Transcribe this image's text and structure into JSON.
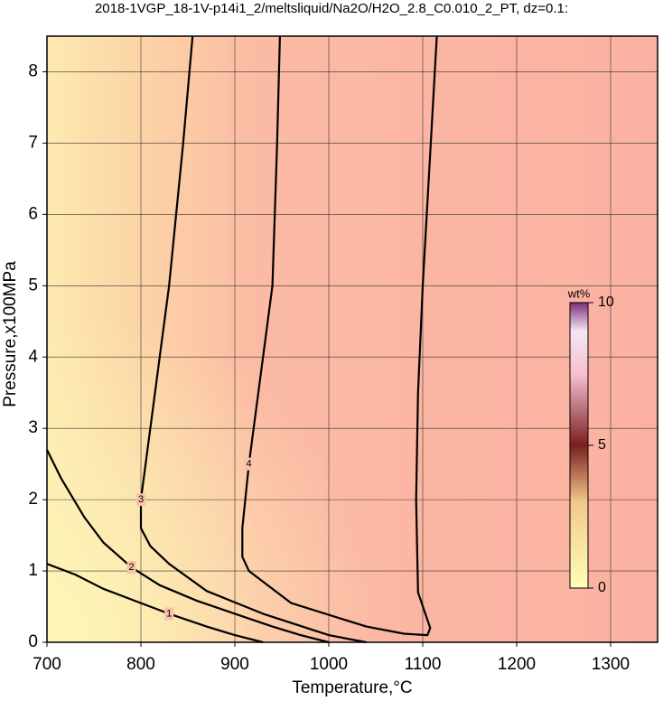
{
  "chart_data": {
    "type": "contour",
    "title": "2018-1VGP_18-1V-p14i1_2/meltsliquid/Na2O/H2O_2.8_C0.010_2_PT, dz=0.1:",
    "x_label": "Temperature,°C",
    "y_label": "Pressure,x100MPa",
    "xlim": [
      700,
      1350
    ],
    "ylim": [
      0,
      8.5
    ],
    "xticks": [
      700,
      800,
      900,
      1000,
      1100,
      1200,
      1300
    ],
    "yticks": [
      0,
      1,
      2,
      3,
      4,
      5,
      6,
      7,
      8
    ],
    "grid": true,
    "contours": [
      {
        "level": 1,
        "x": [
          700,
          730,
          760,
          800,
          830,
          870,
          900,
          930
        ],
        "y": [
          1.1,
          0.95,
          0.75,
          0.55,
          0.4,
          0.22,
          0.1,
          0
        ]
      },
      {
        "level": 2,
        "x": [
          700,
          715,
          740,
          760,
          790,
          820,
          860,
          900,
          940,
          970,
          1000
        ],
        "y": [
          2.7,
          2.3,
          1.75,
          1.4,
          1.05,
          0.8,
          0.58,
          0.4,
          0.22,
          0.1,
          0
        ]
      },
      {
        "level": 3,
        "x": [
          855,
          845,
          830,
          810,
          800,
          800,
          810,
          830,
          870,
          930,
          1000,
          1040
        ],
        "y": [
          8.5,
          7,
          5,
          3,
          2,
          1.6,
          1.35,
          1.1,
          0.72,
          0.4,
          0.1,
          0
        ]
      },
      {
        "level": 4,
        "x": [
          948,
          945,
          940,
          915,
          908,
          908,
          915,
          960,
          1040,
          1080,
          1105,
          1108,
          1095,
          1093,
          1095,
          1100,
          1115
        ],
        "y": [
          8.5,
          7,
          5,
          2.5,
          1.6,
          1.2,
          1.0,
          0.55,
          0.22,
          0.12,
          0.1,
          0.2,
          0.7,
          2.0,
          3.5,
          5,
          8.5
        ]
      }
    ],
    "colorbar": {
      "label": "wt%",
      "lim": [
        0,
        10
      ],
      "ticks": [
        0,
        5,
        10
      ]
    }
  }
}
